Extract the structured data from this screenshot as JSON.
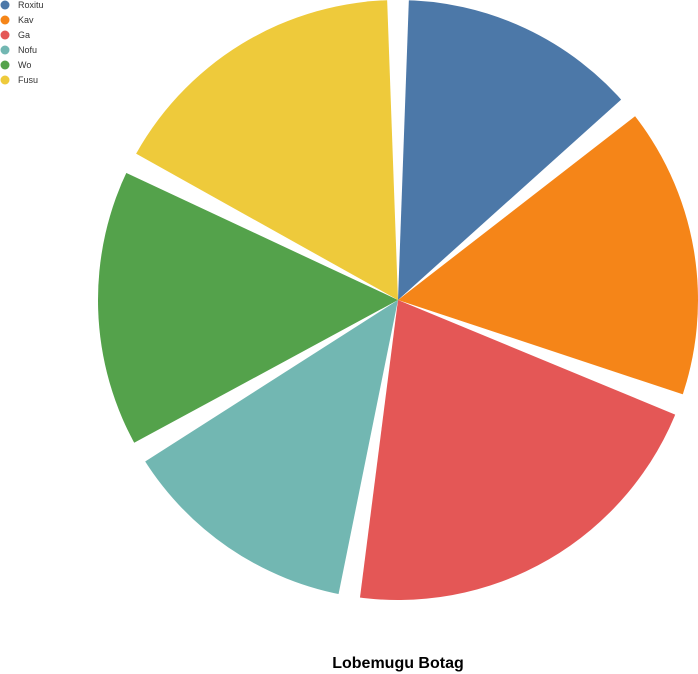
{
  "chart_data": {
    "type": "pie",
    "title": "Lobemugu Botag",
    "legend_position": "top-left",
    "slices": [
      {
        "name": "Roxitu",
        "value": 13.4,
        "color": "#4c78a8"
      },
      {
        "name": "Kav",
        "value": 16.1,
        "color": "#f58518"
      },
      {
        "name": "Ga",
        "value": 21.1,
        "color": "#e45756"
      },
      {
        "name": "Nofu",
        "value": 13.4,
        "color": "#72b7b2"
      },
      {
        "name": "Wo",
        "value": 15.4,
        "color": "#54a24b"
      },
      {
        "name": "Fusu",
        "value": 16.8,
        "color": "#eeca3b"
      }
    ]
  }
}
